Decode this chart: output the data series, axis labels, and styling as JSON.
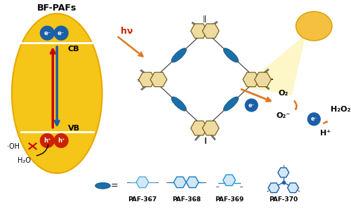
{
  "bg_color": "#ffffff",
  "ellipse_color": "#f5c518",
  "ellipse_edge": "#e8a800",
  "arrow_blue": "#1a5fa8",
  "arrow_red": "#cc0000",
  "electron_color": "#1a5fa8",
  "hole_color": "#cc2200",
  "linker_color": "#1a6fa8",
  "oh_cross_color": "#cc0000",
  "arrow_orange": "#e07820",
  "sun_color": "#f5c040",
  "o2_arrow_color": "#e07820",
  "label_paf367": "PAF-367",
  "label_paf368": "PAF-368",
  "label_paf369": "PAF-369",
  "label_paf370": "PAF-370",
  "text_bfpafs": "BF-PAFs",
  "text_cb": "CB",
  "text_vb": "VB",
  "text_oh": "·OH",
  "text_h2o": "H₂O",
  "text_o2": "O₂",
  "text_o2m": "O₂⁻",
  "text_h2o2": "H₂O₂",
  "text_hplus": "H⁺",
  "text_hv": "hν"
}
